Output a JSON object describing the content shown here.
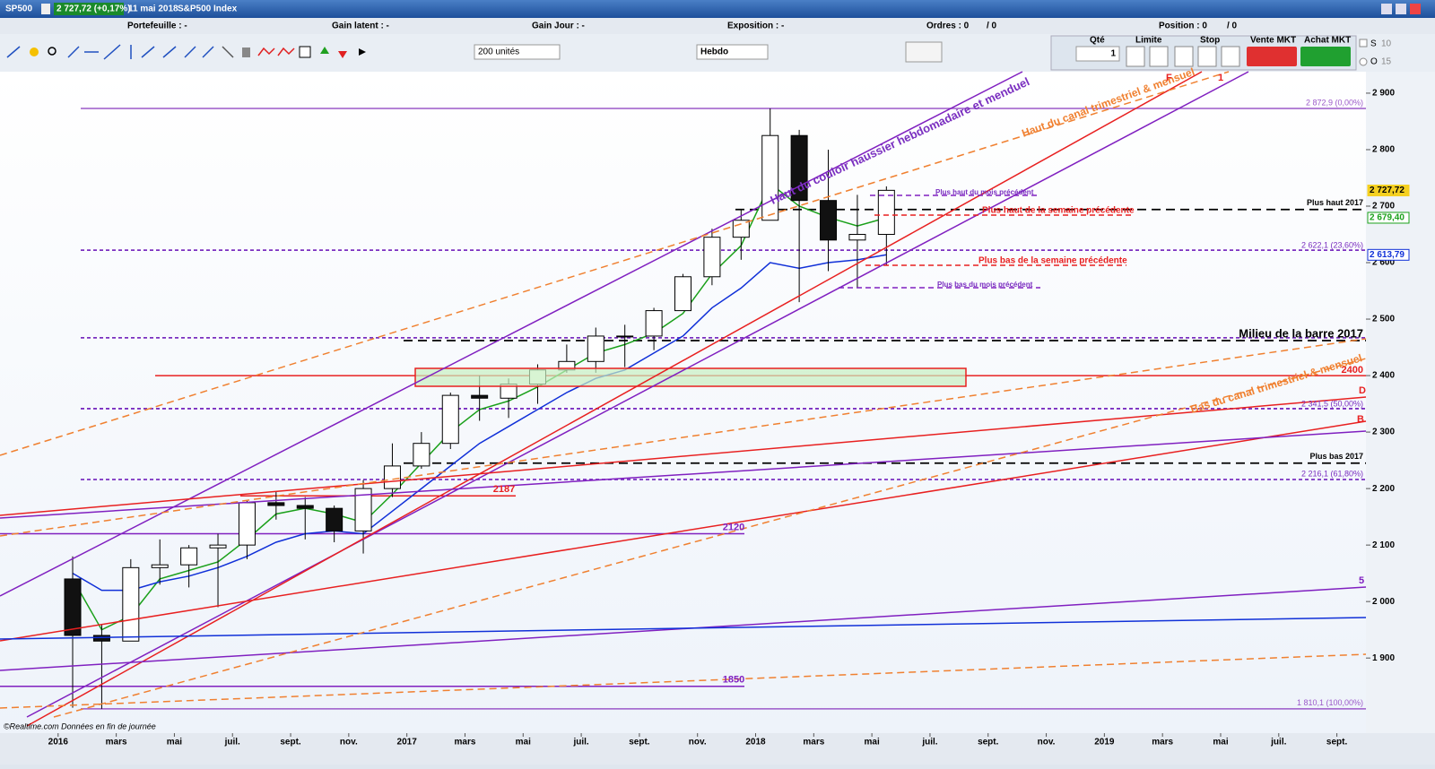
{
  "header": {
    "symbol": "SP500",
    "quote": "2 727,72 (+0,17%)",
    "date": "11 mai 2018",
    "name": "S&P500 Index"
  },
  "info_bar": {
    "portfolio": "Portefeuille : -",
    "unrealized": "Gain latent : -",
    "day_gain": "Gain Jour : -",
    "exposure": "Exposition : -",
    "orders": "Ordres : 0",
    "orders_total": "/ 0",
    "position": "Position : 0",
    "position_total": "/ 0"
  },
  "toolbar": {
    "units": "200 unités",
    "period": "Hebdo",
    "qty_label": "Qté",
    "qty": "1",
    "limit": "Limite",
    "stop": "Stop",
    "sell": "Vente MKT",
    "buy": "Achat MKT",
    "s": "S",
    "o": "O",
    "s_val": "10",
    "o_val": "15"
  },
  "footer": "©Realtime.com  Données en fin de journée",
  "chart_data": {
    "type": "candlestick",
    "x": [
      "2016-01",
      "2016-02",
      "2016-03",
      "2016-04",
      "2016-05",
      "2016-06",
      "2016-07",
      "2016-08",
      "2016-09",
      "2016-10",
      "2016-11",
      "2016-12",
      "2017-01",
      "2017-02",
      "2017-03",
      "2017-04",
      "2017-05",
      "2017-06",
      "2017-07",
      "2017-08",
      "2017-09",
      "2017-10",
      "2017-11",
      "2017-12",
      "2018-01",
      "2018-02",
      "2018-03",
      "2018-04",
      "2018-05"
    ],
    "open": [
      2040,
      1940,
      1930,
      2060,
      2065,
      2095,
      2100,
      2175,
      2170,
      2165,
      2125,
      2200,
      2240,
      2280,
      2365,
      2360,
      2385,
      2410,
      2425,
      2470,
      2470,
      2515,
      2575,
      2645,
      2675,
      2825,
      2710,
      2640,
      2650
    ],
    "high": [
      2080,
      1960,
      2075,
      2110,
      2100,
      2120,
      2180,
      2195,
      2185,
      2170,
      2215,
      2280,
      2300,
      2370,
      2400,
      2395,
      2420,
      2455,
      2485,
      2490,
      2520,
      2580,
      2660,
      2695,
      2873,
      2835,
      2800,
      2720,
      2735
    ],
    "low": [
      1812,
      1810,
      1930,
      2030,
      2025,
      1990,
      2075,
      2145,
      2110,
      2105,
      2085,
      2185,
      2235,
      2270,
      2320,
      2325,
      2350,
      2405,
      2405,
      2415,
      2445,
      2515,
      2560,
      2605,
      2675,
      2530,
      2585,
      2555,
      2595
    ],
    "close": [
      1940,
      1930,
      2060,
      2065,
      2095,
      2100,
      2175,
      2170,
      2165,
      2125,
      2200,
      2240,
      2280,
      2365,
      2360,
      2385,
      2410,
      2425,
      2470,
      2470,
      2515,
      2575,
      2645,
      2675,
      2825,
      2710,
      2640,
      2650,
      2728
    ],
    "series": [
      {
        "color": "#1aa01a",
        "values": [
          2040,
          1950,
          1975,
          2040,
          2055,
          2070,
          2110,
          2155,
          2165,
          2155,
          2140,
          2190,
          2245,
          2300,
          2340,
          2355,
          2380,
          2410,
          2440,
          2455,
          2475,
          2510,
          2580,
          2630,
          2740,
          2700,
          2680,
          2665,
          2679.4
        ]
      },
      {
        "color": "#1030d8",
        "values": [
          2050,
          2020,
          2020,
          2035,
          2045,
          2060,
          2080,
          2105,
          2120,
          2125,
          2120,
          2160,
          2200,
          2240,
          2280,
          2310,
          2340,
          2370,
          2395,
          2410,
          2440,
          2470,
          2520,
          2555,
          2600,
          2590,
          2600,
          2605,
          2613.79
        ]
      }
    ],
    "price_tags": [
      {
        "value": 2727.72,
        "label": "2 727,72",
        "color": "#f5d020"
      },
      {
        "value": 2679.4,
        "label": "2 679,40",
        "color": "#1aa01a"
      },
      {
        "value": 2613.79,
        "label": "2 613,79",
        "color": "#1030d8"
      }
    ],
    "levels": [
      {
        "value": 2872.9,
        "label": "2 872,9 (0,00%)",
        "color": "#9b59c9"
      },
      {
        "value": 2622.1,
        "label": "2 622,1 (23,60%)",
        "color": "#7a2fc0",
        "line_style": "dashed"
      },
      {
        "value": 2467,
        "color": "#7a2fc0",
        "line_style": "dashed"
      },
      {
        "value": 2341.5,
        "label": "2 341,5 (50,00%)",
        "color": "#7a2fc0",
        "line_style": "dashed"
      },
      {
        "value": 2216.1,
        "label": "2 216,1 (61,80%)",
        "color": "#7a2fc0",
        "line_style": "dashed"
      },
      {
        "value": 1810.1,
        "label": "1 810,1 (100,00%)",
        "color": "#9b59c9"
      },
      {
        "value": 2694,
        "label": "Plus haut 2017",
        "color": "#000000",
        "line_style": "dashed"
      },
      {
        "value": 2462,
        "label": "Milieu de la barre 2017",
        "color": "#000000",
        "line_style": "dashed"
      },
      {
        "value": 2245,
        "label": "Plus bas 2017",
        "color": "#000000",
        "line_style": "dashed"
      },
      {
        "value": 2400,
        "label": "2400",
        "color": "#e82020"
      },
      {
        "value": 2187,
        "label": "2187",
        "color": "#e82020"
      },
      {
        "value": 2120,
        "label": "2120",
        "color": "#8020c0"
      },
      {
        "value": 1850,
        "label": "1850",
        "color": "#8020c0"
      }
    ],
    "annotations": [
      "Haut du couloir haussier hebdomadaire et menduel",
      "Haut du canal trimestriel & mensuel",
      "Bas du canal trimestriel & mensuel",
      "Plus haut du mois précédent",
      "Plus haut de la semaine précédente",
      "Plus bas de la semaine précédente",
      "Plus bas du mois précédent",
      "D",
      "B",
      "5",
      "F",
      "1"
    ],
    "xlim": [
      "2015-11",
      "2019-10"
    ],
    "xticks": [
      {
        "value": "2016-01",
        "label": "2016"
      },
      {
        "value": "2016-03",
        "label": "mars"
      },
      {
        "value": "2016-05",
        "label": "mai"
      },
      {
        "value": "2016-07",
        "label": "juil."
      },
      {
        "value": "2016-09",
        "label": "sept."
      },
      {
        "value": "2016-11",
        "label": "nov."
      },
      {
        "value": "2017-01",
        "label": "2017"
      },
      {
        "value": "2017-03",
        "label": "mars"
      },
      {
        "value": "2017-05",
        "label": "mai"
      },
      {
        "value": "2017-07",
        "label": "juil."
      },
      {
        "value": "2017-09",
        "label": "sept."
      },
      {
        "value": "2017-11",
        "label": "nov."
      },
      {
        "value": "2018-01",
        "label": "2018"
      },
      {
        "value": "2018-03",
        "label": "mars"
      },
      {
        "value": "2018-05",
        "label": "mai"
      },
      {
        "value": "2018-07",
        "label": "juil."
      },
      {
        "value": "2018-09",
        "label": "sept."
      },
      {
        "value": "2018-11",
        "label": "nov."
      },
      {
        "value": "2019-01",
        "label": "2019"
      },
      {
        "value": "2019-03",
        "label": "mars"
      },
      {
        "value": "2019-05",
        "label": "mai"
      },
      {
        "value": "2019-07",
        "label": "juil."
      },
      {
        "value": "2019-09",
        "label": "sept."
      }
    ],
    "ylim": [
      1767,
      2938
    ],
    "yticks": [
      {
        "value": 1900,
        "label": "1 900"
      },
      {
        "value": 2000,
        "label": "2 000"
      },
      {
        "value": 2100,
        "label": "2 100"
      },
      {
        "value": 2200,
        "label": "2 200"
      },
      {
        "value": 2300,
        "label": "2 300"
      },
      {
        "value": 2400,
        "label": "2 400"
      },
      {
        "value": 2500,
        "label": "2 500"
      },
      {
        "value": 2600,
        "label": "2 600"
      },
      {
        "value": 2700,
        "label": "2 700"
      },
      {
        "value": 2800,
        "label": "2 800"
      },
      {
        "value": 2900,
        "label": "2 900"
      }
    ]
  }
}
